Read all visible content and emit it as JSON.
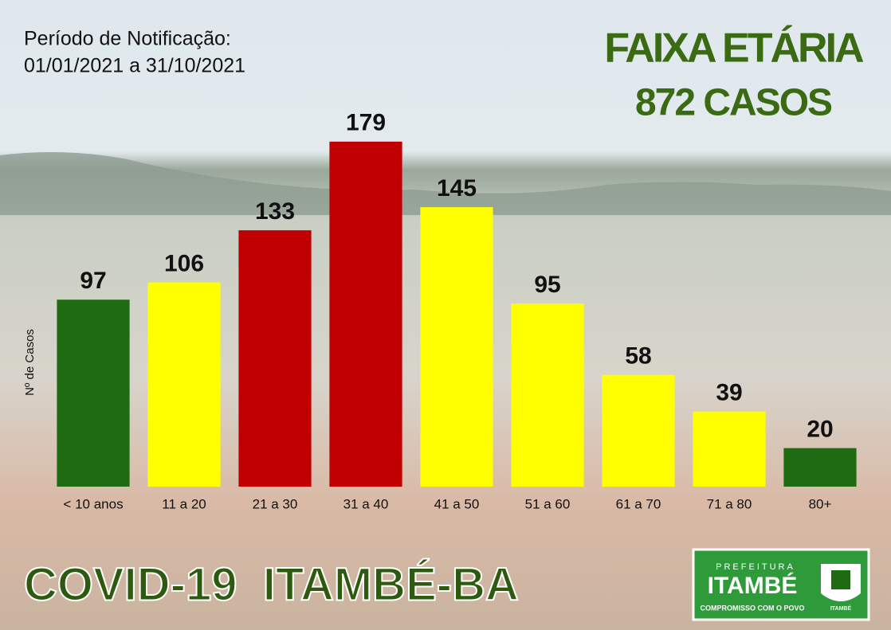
{
  "period_label": "Período de Notificação:",
  "period_range": "01/01/2021 a 31/10/2021",
  "footer": "COVID-19  ITAMBÉ-BA",
  "logo": {
    "top": "PREFEITURA",
    "name": "ITAMBÉ",
    "slogan": "COMPROMISSO COM O POVO",
    "crest": "ITAMBÉ"
  },
  "chart_data": {
    "type": "bar",
    "title": "FAIXA ETÁRIA",
    "subtitle": "872 CASOS",
    "y_label": "Nº de Casos",
    "categories": [
      "< 10 anos",
      "11 a 20",
      "21 a 30",
      "31 a 40",
      "41 a 50",
      "51 a 60",
      "61 a 70",
      "71 a 80",
      "80+"
    ],
    "values": [
      97,
      106,
      133,
      179,
      145,
      95,
      58,
      39,
      20
    ],
    "colors": [
      "#1e6b12",
      "#ffff00",
      "#c00000",
      "#c00000",
      "#ffff00",
      "#ffff00",
      "#ffff00",
      "#ffff00",
      "#1e6b12"
    ]
  }
}
